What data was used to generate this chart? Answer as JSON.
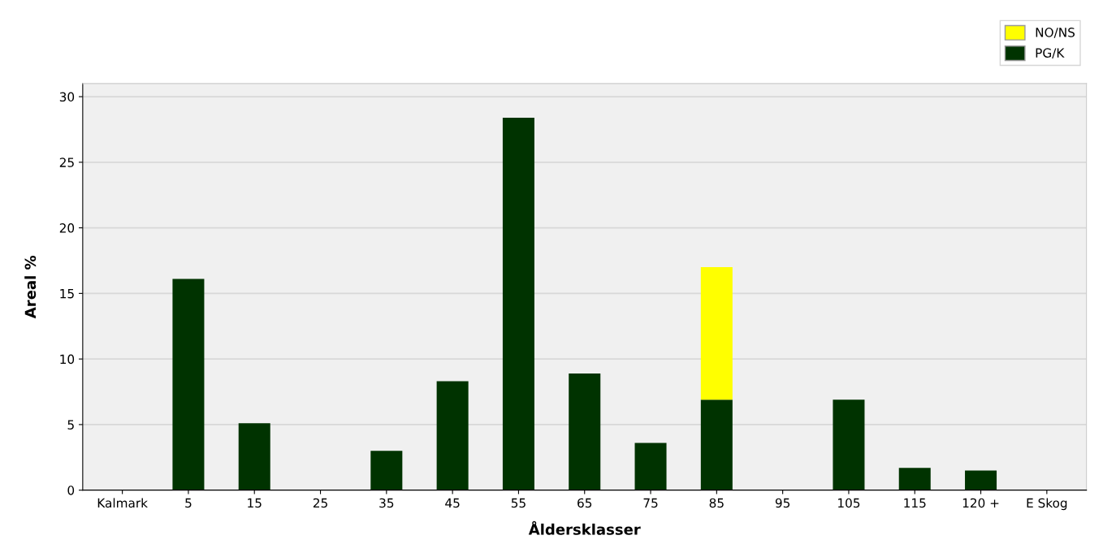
{
  "chart_data": {
    "type": "bar",
    "xlabel": "Åldersklasser",
    "ylabel": "Areal %",
    "categories": [
      "Kalmark",
      "5",
      "15",
      "25",
      "35",
      "45",
      "55",
      "65",
      "75",
      "85",
      "95",
      "105",
      "115",
      "120 +",
      "E Skog"
    ],
    "stacked": true,
    "series": [
      {
        "name": "PG/K",
        "color": "#003300",
        "values": [
          0,
          16.1,
          5.1,
          0,
          3.0,
          8.3,
          28.4,
          8.9,
          3.6,
          6.9,
          0,
          6.9,
          1.7,
          1.5,
          0
        ]
      },
      {
        "name": "NO/NS",
        "color": "#ffff00",
        "values": [
          0,
          0,
          0,
          0,
          0,
          0,
          0,
          0,
          0,
          10.1,
          0,
          0,
          0,
          0,
          0
        ]
      }
    ],
    "ylim": [
      0,
      31
    ],
    "yticks": [
      0,
      5,
      10,
      15,
      20,
      25,
      30
    ],
    "grid": "y",
    "legend": "top right"
  }
}
